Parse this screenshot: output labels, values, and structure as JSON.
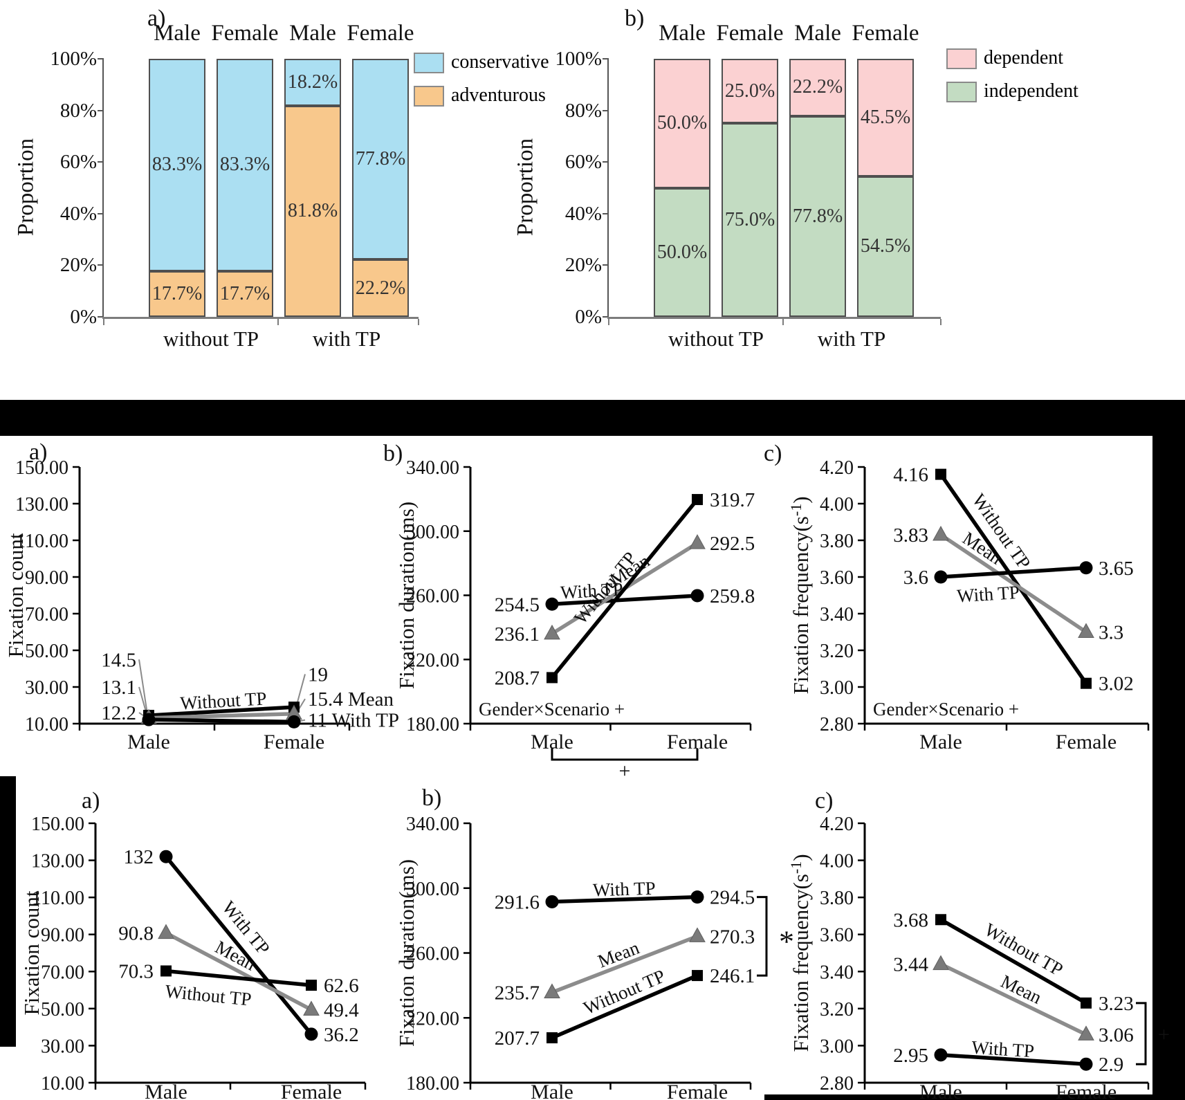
{
  "colors": {
    "background": "#ffffff",
    "separator": "#000000",
    "mean_line": "#8c8c8c",
    "mean_marker": "#7a7a7a",
    "series_line": "#000000"
  },
  "chart_data": [
    {
      "id": "bar-a",
      "type": "bar",
      "panel_label": "a)",
      "ylabel": "Proportion",
      "yticks": [
        "100%",
        "80%",
        "60%",
        "40%",
        "20%",
        "0%"
      ],
      "categories": [
        "Male",
        "Female",
        "Male",
        "Female"
      ],
      "group_labels": [
        "without TP",
        "with TP"
      ],
      "legend": [
        {
          "label": "conservative",
          "color": "#abdff2"
        },
        {
          "label": "adventurous",
          "color": "#f8c88c"
        }
      ],
      "series": [
        {
          "name": "adventurous",
          "position": "bottom",
          "color": "#f8c88c",
          "values": [
            17.7,
            17.7,
            81.8,
            22.2
          ],
          "labels": [
            "17.7%",
            "17.7%",
            "81.8%",
            "22.2%"
          ]
        },
        {
          "name": "conservative",
          "position": "top",
          "color": "#abdff2",
          "values": [
            83.3,
            83.3,
            18.2,
            77.8
          ],
          "labels": [
            "83.3%",
            "83.3%",
            "18.2%",
            "77.8%"
          ]
        }
      ]
    },
    {
      "id": "bar-b",
      "type": "bar",
      "panel_label": "b)",
      "ylabel": "Proportion",
      "yticks": [
        "100%",
        "80%",
        "60%",
        "40%",
        "20%",
        "0%"
      ],
      "categories": [
        "Male",
        "Female",
        "Male",
        "Female"
      ],
      "group_labels": [
        "without TP",
        "with TP"
      ],
      "legend": [
        {
          "label": "dependent",
          "color": "#fbd1d2"
        },
        {
          "label": "independent",
          "color": "#c3dcc2"
        }
      ],
      "series": [
        {
          "name": "independent",
          "position": "bottom",
          "color": "#c3dcc2",
          "values": [
            50.0,
            75.0,
            77.8,
            54.5
          ],
          "labels": [
            "50.0%",
            "75.0%",
            "77.8%",
            "54.5%"
          ]
        },
        {
          "name": "dependent",
          "position": "top",
          "color": "#fbd1d2",
          "values": [
            50.0,
            25.0,
            22.2,
            45.5
          ],
          "labels": [
            "50.0%",
            "25.0%",
            "22.2%",
            "45.5%"
          ]
        }
      ]
    },
    {
      "id": "mid-a",
      "type": "line",
      "panel_label": "a)",
      "ylabel": "Fixation count",
      "ylim": [
        10,
        150
      ],
      "ytick_step": 20,
      "ytick_labels": [
        "150.00",
        "130.00",
        "110.00",
        "90.00",
        "70.00",
        "50.00",
        "30.00",
        "10.00"
      ],
      "categories": [
        "Male",
        "Female"
      ],
      "series": [
        {
          "name": "Without TP",
          "marker": "square",
          "color": "#000000",
          "values": [
            14.5,
            19
          ],
          "left_label": "14.5",
          "right_label": "19"
        },
        {
          "name": "Mean",
          "marker": "triangle",
          "color": "#8c8c8c",
          "values": [
            13.1,
            15.4
          ],
          "left_label": "13.1",
          "right_label": "15.4 Mean"
        },
        {
          "name": "With TP",
          "marker": "circle",
          "color": "#000000",
          "values": [
            12.2,
            11
          ],
          "left_label": "12.2",
          "right_label": "11 With TP"
        }
      ]
    },
    {
      "id": "mid-b",
      "type": "line",
      "panel_label": "b)",
      "ylabel": "Fixation duration(ms)",
      "ylim": [
        180,
        340
      ],
      "ytick_step": 40,
      "ytick_labels": [
        "340.00",
        "300.00",
        "260.00",
        "220.00",
        "180.00"
      ],
      "categories": [
        "Male",
        "Female"
      ],
      "corner_note": "Gender×Scenario +",
      "below_bracket_label": "+",
      "series": [
        {
          "name": "With TP",
          "marker": "circle",
          "color": "#000000",
          "values": [
            254.5,
            259.8
          ],
          "left_label": "254.5",
          "right_label": "259.8"
        },
        {
          "name": "Mean",
          "marker": "triangle",
          "color": "#8c8c8c",
          "values": [
            236.1,
            292.5
          ],
          "left_label": "236.1",
          "right_label": "292.5"
        },
        {
          "name": "Without TP",
          "marker": "square",
          "color": "#000000",
          "values": [
            208.7,
            319.7
          ],
          "left_label": "208.7",
          "right_label": "319.7"
        }
      ]
    },
    {
      "id": "mid-c",
      "type": "line",
      "panel_label": "c)",
      "ylabel": "Fixation frequency(s⁻¹)",
      "ylim": [
        2.8,
        4.2
      ],
      "ytick_step": 0.2,
      "ytick_labels": [
        "4.20",
        "4.00",
        "3.80",
        "3.60",
        "3.40",
        "3.20",
        "3.00",
        "2.80"
      ],
      "categories": [
        "Male",
        "Female"
      ],
      "corner_note": "Gender×Scenario +",
      "series": [
        {
          "name": "Without TP",
          "marker": "square",
          "color": "#000000",
          "values": [
            4.16,
            3.02
          ],
          "left_label": "4.16",
          "right_label": "3.02"
        },
        {
          "name": "Mean",
          "marker": "triangle",
          "color": "#8c8c8c",
          "values": [
            3.83,
            3.3
          ],
          "left_label": "3.83",
          "right_label": "3.3"
        },
        {
          "name": "With TP",
          "marker": "circle",
          "color": "#000000",
          "values": [
            3.6,
            3.65
          ],
          "left_label": "3.6",
          "right_label": "3.65"
        }
      ]
    },
    {
      "id": "bot-a",
      "type": "line",
      "panel_label": "a)",
      "ylabel": "Fixation count",
      "ylim": [
        10,
        150
      ],
      "ytick_step": 20,
      "ytick_labels": [
        "150.00",
        "130.00",
        "110.00",
        "90.00",
        "70.00",
        "50.00",
        "30.00",
        "10.00"
      ],
      "categories": [
        "Male",
        "Female"
      ],
      "series": [
        {
          "name": "With TP",
          "marker": "circle",
          "color": "#000000",
          "values": [
            132,
            36.2
          ],
          "left_label": "132",
          "right_label": "36.2"
        },
        {
          "name": "Mean",
          "marker": "triangle",
          "color": "#8c8c8c",
          "values": [
            90.8,
            49.4
          ],
          "left_label": "90.8",
          "right_label": "49.4"
        },
        {
          "name": "Without TP",
          "marker": "square",
          "color": "#000000",
          "values": [
            70.3,
            62.6
          ],
          "left_label": "70.3",
          "right_label": "62.6"
        }
      ]
    },
    {
      "id": "bot-b",
      "type": "line",
      "panel_label": "b)",
      "ylabel": "Fixation duration(ms)",
      "ylim": [
        180,
        340
      ],
      "ytick_step": 40,
      "ytick_labels": [
        "340.00",
        "300.00",
        "260.00",
        "220.00",
        "180.00"
      ],
      "categories": [
        "Male",
        "Female"
      ],
      "right_bracket": {
        "top_value": 294.5,
        "bottom_value": 246.1,
        "label": "*"
      },
      "series": [
        {
          "name": "With TP",
          "marker": "circle",
          "color": "#000000",
          "values": [
            291.6,
            294.5
          ],
          "left_label": "291.6",
          "right_label": "294.5"
        },
        {
          "name": "Mean",
          "marker": "triangle",
          "color": "#8c8c8c",
          "values": [
            235.7,
            270.3
          ],
          "left_label": "235.7",
          "right_label": "270.3"
        },
        {
          "name": "Without TP",
          "marker": "square",
          "color": "#000000",
          "values": [
            207.7,
            246.1
          ],
          "left_label": "207.7",
          "right_label": "246.1"
        }
      ]
    },
    {
      "id": "bot-c",
      "type": "line",
      "panel_label": "c)",
      "ylabel": "Fixation frequency(s⁻¹)",
      "ylim": [
        2.8,
        4.2
      ],
      "ytick_step": 0.2,
      "ytick_labels": [
        "4.20",
        "4.00",
        "3.80",
        "3.60",
        "3.40",
        "3.20",
        "3.00",
        "2.80"
      ],
      "categories": [
        "Male",
        "Female"
      ],
      "right_bracket": {
        "top_value": 3.23,
        "bottom_value": 2.9,
        "label": "+"
      },
      "series": [
        {
          "name": "Without TP",
          "marker": "square",
          "color": "#000000",
          "values": [
            3.68,
            3.23
          ],
          "left_label": "3.68",
          "right_label": "3.23"
        },
        {
          "name": "Mean",
          "marker": "triangle",
          "color": "#8c8c8c",
          "values": [
            3.44,
            3.06
          ],
          "left_label": "3.44",
          "right_label": "3.06"
        },
        {
          "name": "With TP",
          "marker": "circle",
          "color": "#000000",
          "values": [
            2.95,
            2.9
          ],
          "left_label": "2.95",
          "right_label": "2.9"
        }
      ]
    }
  ]
}
